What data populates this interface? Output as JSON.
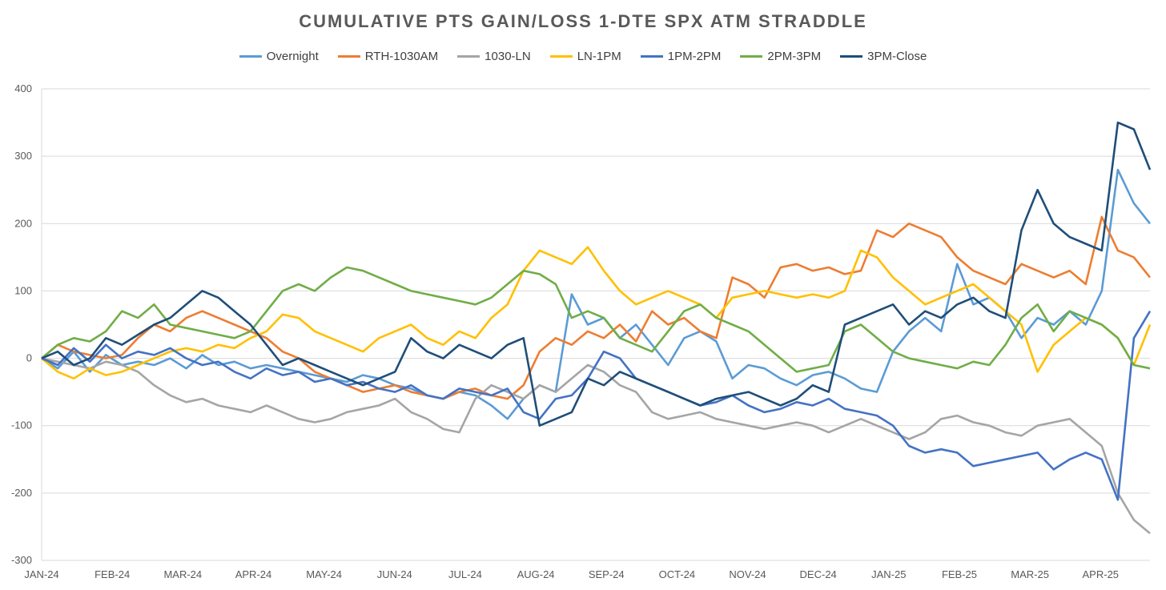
{
  "chart_data": {
    "type": "line",
    "title": "CUMULATIVE PTS GAIN/LOSS 1-DTE SPX ATM STRADDLE",
    "xlabel": "",
    "ylabel": "",
    "ylim": [
      -300,
      400
    ],
    "yticks": [
      400,
      300,
      200,
      100,
      0,
      -100,
      -200,
      -300
    ],
    "x_ticks": [
      "JAN-24",
      "FEB-24",
      "MAR-24",
      "APR-24",
      "MAY-24",
      "JUN-24",
      "JUL-24",
      "AUG-24",
      "SEP-24",
      "OCT-24",
      "NOV-24",
      "DEC-24",
      "JAN-25",
      "FEB-25",
      "MAR-25",
      "APR-25"
    ],
    "grid": "horizontal",
    "legend_position": "top",
    "series": [
      {
        "name": "Overnight",
        "color": "#5B9BD5",
        "values": [
          0,
          -15,
          10,
          -20,
          5,
          -10,
          -5,
          -10,
          0,
          -15,
          5,
          -10,
          -5,
          -15,
          -10,
          -15,
          -20,
          -25,
          -30,
          -35,
          -25,
          -30,
          -40,
          -45,
          -55,
          -60,
          -50,
          -55,
          -70,
          -90,
          -60,
          -40,
          -50,
          95,
          50,
          60,
          30,
          50,
          20,
          -10,
          30,
          40,
          25,
          -30,
          -10,
          -15,
          -30,
          -40,
          -25,
          -20,
          -30,
          -45,
          -50,
          10,
          40,
          60,
          40,
          140,
          80,
          90,
          70,
          30,
          60,
          50,
          70,
          50,
          100,
          280,
          230,
          200
        ]
      },
      {
        "name": "RTH-1030AM",
        "color": "#ED7D31",
        "values": [
          0,
          20,
          10,
          5,
          0,
          5,
          30,
          50,
          40,
          60,
          70,
          60,
          50,
          40,
          30,
          10,
          0,
          -20,
          -30,
          -40,
          -50,
          -45,
          -40,
          -50,
          -55,
          -60,
          -50,
          -45,
          -55,
          -60,
          -40,
          10,
          30,
          20,
          40,
          30,
          50,
          25,
          70,
          50,
          60,
          40,
          30,
          120,
          110,
          90,
          135,
          140,
          130,
          135,
          125,
          130,
          190,
          180,
          200,
          190,
          180,
          150,
          130,
          120,
          110,
          140,
          130,
          120,
          130,
          110,
          210,
          160,
          150,
          120
        ]
      },
      {
        "name": "1030-LN",
        "color": "#A5A5A5",
        "values": [
          0,
          -5,
          -10,
          -15,
          -5,
          -10,
          -20,
          -40,
          -55,
          -65,
          -60,
          -70,
          -75,
          -80,
          -70,
          -80,
          -90,
          -95,
          -90,
          -80,
          -75,
          -70,
          -60,
          -80,
          -90,
          -105,
          -110,
          -60,
          -40,
          -50,
          -60,
          -40,
          -50,
          -30,
          -10,
          -20,
          -40,
          -50,
          -80,
          -90,
          -85,
          -80,
          -90,
          -95,
          -100,
          -105,
          -100,
          -95,
          -100,
          -110,
          -100,
          -90,
          -100,
          -110,
          -120,
          -110,
          -90,
          -85,
          -95,
          -100,
          -110,
          -115,
          -100,
          -95,
          -90,
          -110,
          -130,
          -200,
          -240,
          -260
        ]
      },
      {
        "name": "LN-1PM",
        "color": "#FFC000",
        "values": [
          0,
          -20,
          -30,
          -15,
          -25,
          -20,
          -10,
          0,
          10,
          15,
          10,
          20,
          15,
          30,
          40,
          65,
          60,
          40,
          30,
          20,
          10,
          30,
          40,
          50,
          30,
          20,
          40,
          30,
          60,
          80,
          130,
          160,
          150,
          140,
          165,
          130,
          100,
          80,
          90,
          100,
          90,
          80,
          60,
          90,
          95,
          100,
          95,
          90,
          95,
          90,
          100,
          160,
          150,
          120,
          100,
          80,
          90,
          100,
          110,
          90,
          70,
          50,
          -20,
          20,
          40,
          60,
          50,
          30,
          -10,
          50
        ]
      },
      {
        "name": "1PM-2PM",
        "color": "#4472C4",
        "values": [
          0,
          -10,
          15,
          -5,
          20,
          0,
          10,
          5,
          15,
          0,
          -10,
          -5,
          -20,
          -30,
          -15,
          -25,
          -20,
          -35,
          -30,
          -40,
          -35,
          -45,
          -50,
          -40,
          -55,
          -60,
          -45,
          -50,
          -55,
          -45,
          -80,
          -90,
          -60,
          -55,
          -30,
          10,
          0,
          -30,
          -40,
          -50,
          -60,
          -70,
          -65,
          -55,
          -70,
          -80,
          -75,
          -65,
          -70,
          -60,
          -75,
          -80,
          -85,
          -100,
          -130,
          -140,
          -135,
          -140,
          -160,
          -155,
          -150,
          -145,
          -140,
          -165,
          -150,
          -140,
          -150,
          -210,
          30,
          70
        ]
      },
      {
        "name": "2PM-3PM",
        "color": "#70AD47",
        "values": [
          0,
          20,
          30,
          25,
          40,
          70,
          60,
          80,
          50,
          45,
          40,
          35,
          30,
          40,
          70,
          100,
          110,
          100,
          120,
          135,
          130,
          120,
          110,
          100,
          95,
          90,
          85,
          80,
          90,
          110,
          130,
          125,
          110,
          60,
          70,
          60,
          30,
          20,
          10,
          40,
          70,
          80,
          60,
          50,
          40,
          20,
          0,
          -20,
          -15,
          -10,
          40,
          50,
          30,
          10,
          0,
          -5,
          -10,
          -15,
          -5,
          -10,
          20,
          60,
          80,
          40,
          70,
          60,
          50,
          30,
          -10,
          -15
        ]
      },
      {
        "name": "3PM-Close",
        "color": "#1F4E79",
        "values": [
          0,
          10,
          -10,
          0,
          30,
          20,
          35,
          50,
          60,
          80,
          100,
          90,
          70,
          50,
          20,
          -10,
          0,
          -10,
          -20,
          -30,
          -40,
          -30,
          -20,
          30,
          10,
          0,
          20,
          10,
          0,
          20,
          30,
          -100,
          -90,
          -80,
          -30,
          -40,
          -20,
          -30,
          -40,
          -50,
          -60,
          -70,
          -60,
          -55,
          -50,
          -60,
          -70,
          -60,
          -40,
          -50,
          50,
          60,
          70,
          80,
          50,
          70,
          60,
          80,
          90,
          70,
          60,
          190,
          250,
          200,
          180,
          170,
          160,
          350,
          340,
          280
        ]
      }
    ]
  }
}
